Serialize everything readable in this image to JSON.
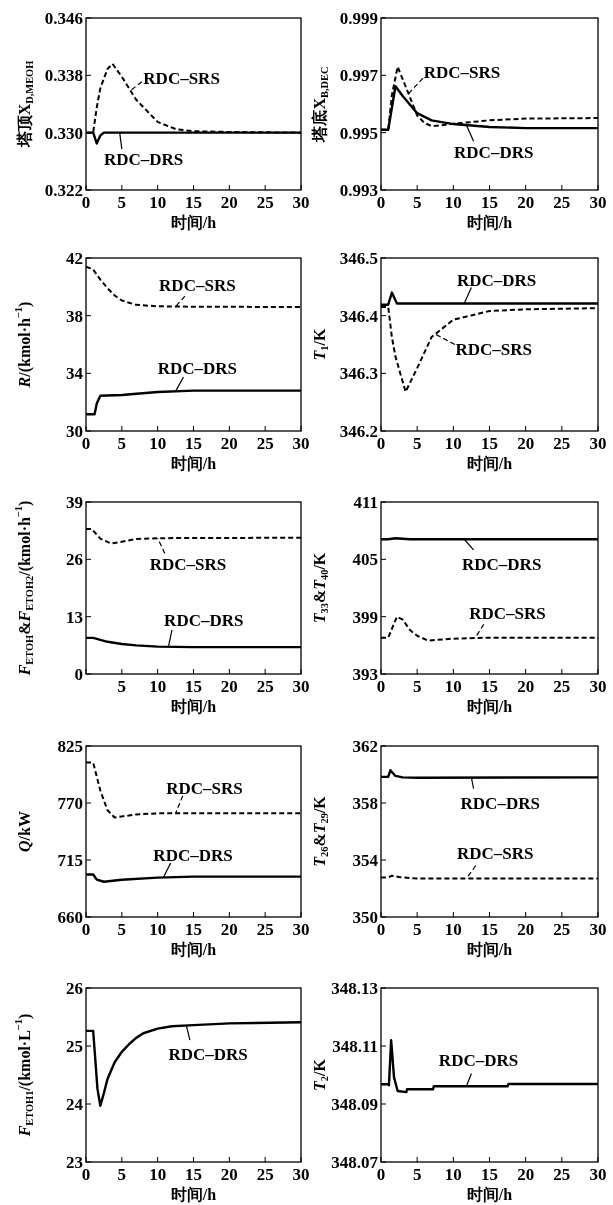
{
  "chart_data": [
    {
      "type": "line",
      "xlabel": "时间/h",
      "ylabel": "塔顶X$_{D,MEOH}$",
      "xlim": [
        0,
        30
      ],
      "xticks": [
        0,
        5,
        10,
        15,
        20,
        25,
        30
      ],
      "ylim": [
        0.322,
        0.346
      ],
      "yticks": [
        0.322,
        {
          "value": 0.33,
          "label": "0.330"
        },
        0.338,
        0.346
      ],
      "series": [
        {
          "name": "RDC–SRS",
          "color": "#000000",
          "line_style": "dashed",
          "x": [
            0,
            1,
            1.5,
            2,
            3,
            3.7,
            5,
            7,
            10,
            12.5,
            15,
            20,
            30
          ],
          "values": [
            0.33,
            0.33,
            0.3335,
            0.3362,
            0.3389,
            0.3396,
            0.3378,
            0.3346,
            0.3315,
            0.3305,
            0.3302,
            0.3301,
            0.33
          ]
        },
        {
          "name": "RDC–DRS",
          "color": "#000000",
          "line_style": "solid",
          "x": [
            0,
            1,
            1.5,
            2,
            2.5,
            30
          ],
          "values": [
            0.33,
            0.33,
            0.3285,
            0.3296,
            0.33,
            0.33
          ]
        }
      ]
    },
    {
      "type": "line",
      "xlabel": "时间/h",
      "ylabel": "塔底X$_{B,DEC}$",
      "xlim": [
        0,
        30
      ],
      "xticks": [
        0,
        5,
        10,
        15,
        20,
        25,
        30
      ],
      "ylim": [
        0.993,
        0.999
      ],
      "yticks": [
        0.993,
        0.995,
        0.997,
        0.999
      ],
      "series": [
        {
          "name": "RDC–SRS",
          "color": "#000000",
          "line_style": "dashed",
          "x": [
            0,
            1,
            1.5,
            2.3,
            3.5,
            5,
            6,
            7,
            8,
            10,
            15,
            20,
            30
          ],
          "values": [
            0.9951,
            0.9951,
            0.9963,
            0.9973,
            0.99655,
            0.9956,
            0.99534,
            0.99523,
            0.99525,
            0.99531,
            0.99543,
            0.99549,
            0.99551
          ]
        },
        {
          "name": "RDC–DRS",
          "color": "#000000",
          "line_style": "solid",
          "x": [
            0,
            1,
            2,
            3,
            5,
            7,
            10,
            15,
            20,
            30
          ],
          "values": [
            0.9951,
            0.9951,
            0.99662,
            0.99628,
            0.99568,
            0.99543,
            0.9953,
            0.9952,
            0.99516,
            0.99516
          ]
        }
      ]
    },
    {
      "type": "line",
      "xlabel": "时间/h",
      "ylabel": "*R*/(kmol·h$^{−1}$)",
      "xlim": [
        0,
        30
      ],
      "xticks": [
        0,
        5,
        10,
        15,
        20,
        25,
        30
      ],
      "ylim": [
        30,
        42
      ],
      "yticks": [
        30,
        34,
        38,
        42
      ],
      "series": [
        {
          "name": "RDC–SRS",
          "color": "#000000",
          "line_style": "dashed",
          "x": [
            0,
            1,
            2,
            3,
            4,
            5,
            7,
            10,
            15,
            30
          ],
          "values": [
            41.4,
            41.2,
            40.5,
            39.9,
            39.4,
            39.05,
            38.75,
            38.65,
            38.62,
            38.6
          ]
        },
        {
          "name": "RDC–DRS",
          "color": "#000000",
          "line_style": "solid",
          "x": [
            0,
            1.2,
            1.5,
            2,
            5,
            10,
            15,
            30
          ],
          "values": [
            31.16,
            31.16,
            31.9,
            32.45,
            32.5,
            32.7,
            32.8,
            32.8
          ]
        }
      ]
    },
    {
      "type": "line",
      "xlabel": "时间/h",
      "ylabel": "*T*$_{1}$/K",
      "xlim": [
        0,
        30
      ],
      "xticks": [
        0,
        5,
        10,
        15,
        20,
        25,
        30
      ],
      "ylim": [
        346.2,
        346.5
      ],
      "yticks": [
        346.2,
        346.3,
        346.4,
        346.5
      ],
      "series": [
        {
          "name": "RDC–DRS",
          "color": "#000000",
          "line_style": "solid",
          "x": [
            0,
            1,
            1.5,
            2.2,
            30
          ],
          "values": [
            346.419,
            346.419,
            346.44,
            346.421,
            346.421
          ]
        },
        {
          "name": "RDC–SRS",
          "color": "#000000",
          "line_style": "dashed",
          "x": [
            0,
            1,
            1.5,
            2,
            3.4,
            5,
            7,
            10,
            15,
            20,
            30
          ],
          "values": [
            346.415,
            346.415,
            346.363,
            346.329,
            346.268,
            346.309,
            346.363,
            346.393,
            346.408,
            346.411,
            346.413
          ]
        }
      ]
    },
    {
      "type": "line",
      "xlabel": "时间/h",
      "ylabel": "*F*$_{ETOH}$&*F*$_{ETOH2}$/(kmol·h$^{−1}$)",
      "xlim": [
        0,
        30
      ],
      "xticks": [
        {
          "value": 0,
          "label": null
        },
        5,
        10,
        15,
        20,
        25,
        30
      ],
      "ylim": [
        0,
        39
      ],
      "yticks": [
        0,
        13,
        26,
        39
      ],
      "series": [
        {
          "name": "RDC–SRS",
          "color": "#000000",
          "line_style": "dashed",
          "x": [
            0,
            0.8,
            2,
            3.5,
            5,
            7,
            10,
            30
          ],
          "values": [
            32.9,
            32.9,
            30.7,
            29.6,
            30.0,
            30.6,
            30.8,
            30.9
          ]
        },
        {
          "name": "RDC–DRS",
          "color": "#000000",
          "line_style": "solid",
          "x": [
            0,
            1,
            3,
            5,
            7,
            10,
            15,
            30
          ],
          "values": [
            8.2,
            8.2,
            7.3,
            6.8,
            6.5,
            6.2,
            6.1,
            6.1
          ]
        }
      ]
    },
    {
      "type": "line",
      "xlabel": "时间/h",
      "ylabel": "*T*$_{33}$&*T*$_{40}$/K",
      "xlim": [
        0,
        30
      ],
      "xticks": [
        0,
        5,
        10,
        15,
        20,
        25,
        30
      ],
      "ylim": [
        393,
        411
      ],
      "yticks": [
        393,
        399,
        405,
        411
      ],
      "series": [
        {
          "name": "RDC–DRS",
          "color": "#000000",
          "line_style": "solid",
          "x": [
            0,
            1,
            2,
            4,
            30
          ],
          "values": [
            407.1,
            407.1,
            407.2,
            407.1,
            407.1
          ]
        },
        {
          "name": "RDC–SRS",
          "color": "#000000",
          "line_style": "dashed",
          "x": [
            0,
            1,
            2.2,
            3,
            4,
            5,
            6.5,
            10,
            15,
            30
          ],
          "values": [
            396.8,
            396.8,
            399.0,
            398.7,
            397.6,
            397.0,
            396.5,
            396.7,
            396.8,
            396.8
          ]
        }
      ]
    },
    {
      "type": "line",
      "xlabel": "时间/h",
      "ylabel": "*Q*/kW",
      "xlim": [
        0,
        30
      ],
      "xticks": [
        0,
        5,
        10,
        15,
        20,
        25,
        30
      ],
      "ylim": [
        660,
        825
      ],
      "yticks": [
        660,
        715,
        770,
        825
      ],
      "series": [
        {
          "name": "RDC–SRS",
          "color": "#000000",
          "line_style": "dashed",
          "x": [
            0,
            1,
            2,
            3,
            4,
            5,
            7,
            10,
            30
          ],
          "values": [
            809,
            809,
            782,
            763,
            756,
            757,
            759,
            760,
            760
          ]
        },
        {
          "name": "RDC–DRS",
          "color": "#000000",
          "line_style": "solid",
          "x": [
            0,
            1,
            1.5,
            2.5,
            5,
            10,
            15,
            30
          ],
          "values": [
            701,
            701,
            696,
            694,
            696,
            698,
            699,
            699
          ]
        }
      ]
    },
    {
      "type": "line",
      "xlabel": "时间/h",
      "ylabel": "*T*$_{26}$&*T*$_{29}$/K",
      "xlim": [
        0,
        30
      ],
      "xticks": [
        0,
        5,
        10,
        15,
        20,
        25,
        30
      ],
      "ylim": [
        350,
        362
      ],
      "yticks": [
        350,
        354,
        358,
        362
      ],
      "series": [
        {
          "name": "RDC–DRS",
          "color": "#000000",
          "line_style": "solid",
          "x": [
            0,
            1,
            1.3,
            2,
            3,
            5,
            30
          ],
          "values": [
            359.83,
            359.83,
            360.3,
            359.9,
            359.8,
            359.77,
            359.8
          ]
        },
        {
          "name": "RDC–SRS",
          "color": "#000000",
          "line_style": "dashed",
          "x": [
            0,
            1,
            1.5,
            2.5,
            5,
            30
          ],
          "values": [
            352.77,
            352.77,
            352.9,
            352.8,
            352.7,
            352.7
          ]
        }
      ]
    },
    {
      "type": "line",
      "xlabel": "时间/h",
      "ylabel": "*F*$_{ETOH1}$/(kmol·L$^{−1}$)",
      "xlim": [
        0,
        30
      ],
      "xticks": [
        0,
        5,
        10,
        15,
        20,
        25,
        30
      ],
      "ylim": [
        23,
        26
      ],
      "yticks": [
        23,
        24,
        25,
        26
      ],
      "series": [
        {
          "name": "RDC–DRS",
          "color": "#000000",
          "line_style": "solid",
          "x": [
            0,
            1,
            1.2,
            1.6,
            2,
            2.5,
            3,
            4,
            5,
            6,
            7,
            8,
            10,
            12,
            15,
            20,
            30
          ],
          "values": [
            25.26,
            25.26,
            24.93,
            24.26,
            23.97,
            24.19,
            24.43,
            24.72,
            24.9,
            25.03,
            25.14,
            25.22,
            25.3,
            25.34,
            25.36,
            25.39,
            25.41
          ]
        }
      ]
    },
    {
      "type": "line",
      "xlabel": "时间/h",
      "ylabel": "*T*$_{2}$/K",
      "xlim": [
        0,
        30
      ],
      "xticks": [
        0,
        5,
        10,
        15,
        20,
        25,
        30
      ],
      "ylim": [
        348.07,
        348.13
      ],
      "yticks": [
        348.07,
        348.09,
        348.11,
        348.13
      ],
      "series": [
        {
          "name": "RDC–DRS",
          "color": "#000000",
          "line_style": "solid",
          "x": [
            0,
            1,
            1.1,
            1.4,
            1.8,
            2.3,
            3.5,
            3.6,
            7.2,
            7.3,
            17.5,
            17.6,
            30
          ],
          "values": [
            348.0968,
            348.0968,
            348.0965,
            348.112,
            348.0992,
            348.0945,
            348.0941,
            348.0951,
            348.0951,
            348.0961,
            348.0961,
            348.0969,
            348.0969
          ]
        }
      ]
    }
  ]
}
